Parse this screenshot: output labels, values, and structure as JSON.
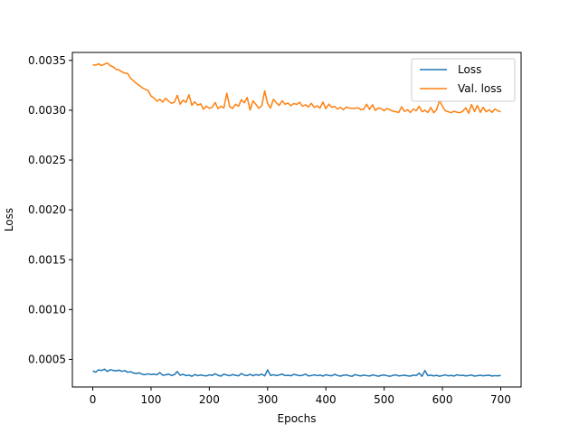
{
  "chart_data": {
    "type": "line",
    "xlabel": "Epochs",
    "ylabel": "Loss",
    "xlim": [
      -35,
      735
    ],
    "ylim": [
      0.000223,
      0.00358
    ],
    "xticks": [
      0,
      100,
      200,
      300,
      400,
      500,
      600,
      700
    ],
    "xtick_labels": [
      "0",
      "100",
      "200",
      "300",
      "400",
      "500",
      "600",
      "700"
    ],
    "yticks": [
      0.0005,
      0.001,
      0.0015,
      0.002,
      0.0025,
      0.003,
      0.0035
    ],
    "ytick_labels": [
      "0.0005",
      "0.0010",
      "0.0015",
      "0.0020",
      "0.0025",
      "0.0030",
      "0.0035"
    ],
    "grid": false,
    "legend_position": "top-right",
    "x": [
      0,
      5,
      10,
      15,
      20,
      25,
      30,
      35,
      40,
      45,
      50,
      55,
      60,
      65,
      70,
      75,
      80,
      85,
      90,
      95,
      100,
      105,
      110,
      115,
      120,
      125,
      130,
      135,
      140,
      145,
      150,
      155,
      160,
      165,
      170,
      175,
      180,
      185,
      190,
      195,
      200,
      205,
      210,
      215,
      220,
      225,
      230,
      235,
      240,
      245,
      250,
      255,
      260,
      265,
      270,
      275,
      280,
      285,
      290,
      295,
      300,
      305,
      310,
      315,
      320,
      325,
      330,
      335,
      340,
      345,
      350,
      355,
      360,
      365,
      370,
      375,
      380,
      385,
      390,
      395,
      400,
      405,
      410,
      415,
      420,
      425,
      430,
      435,
      440,
      445,
      450,
      455,
      460,
      465,
      470,
      475,
      480,
      485,
      490,
      495,
      500,
      505,
      510,
      515,
      520,
      525,
      530,
      535,
      540,
      545,
      550,
      555,
      560,
      565,
      570,
      575,
      580,
      585,
      590,
      595,
      600,
      605,
      610,
      615,
      620,
      625,
      630,
      635,
      640,
      645,
      650,
      655,
      660,
      665,
      670,
      675,
      680,
      685,
      690,
      695,
      700
    ],
    "series": [
      {
        "name": "Loss",
        "color": "#1f77b4",
        "values": [
          0.000385,
          0.000372,
          0.000395,
          0.000388,
          0.000402,
          0.000379,
          0.000396,
          0.00039,
          0.000384,
          0.000392,
          0.00038,
          0.000387,
          0.000371,
          0.000376,
          0.000362,
          0.000358,
          0.000365,
          0.00035,
          0.000347,
          0.000355,
          0.000348,
          0.000352,
          0.000345,
          0.000368,
          0.000341,
          0.000344,
          0.000352,
          0.000339,
          0.000346,
          0.000378,
          0.00034,
          0.000351,
          0.000337,
          0.000342,
          0.00033,
          0.000348,
          0.000336,
          0.000343,
          0.000338,
          0.000334,
          0.000345,
          0.000339,
          0.000356,
          0.00034,
          0.000332,
          0.000352,
          0.000342,
          0.000336,
          0.000348,
          0.00034,
          0.000335,
          0.000358,
          0.000342,
          0.000338,
          0.00035,
          0.000336,
          0.000347,
          0.000341,
          0.000352,
          0.000334,
          0.000395,
          0.000339,
          0.000346,
          0.000337,
          0.000344,
          0.000352,
          0.000338,
          0.000341,
          0.000335,
          0.000349,
          0.000343,
          0.000336,
          0.00034,
          0.000352,
          0.000334,
          0.000338,
          0.000345,
          0.000337,
          0.000342,
          0.000333,
          0.000346,
          0.000339,
          0.000335,
          0.00035,
          0.000338,
          0.000332,
          0.000341,
          0.000344,
          0.000336,
          0.00033,
          0.000347,
          0.000339,
          0.000334,
          0.000342,
          0.000337,
          0.000333,
          0.000344,
          0.000338,
          0.000331,
          0.00034,
          0.000343,
          0.000336,
          0.00033,
          0.000339,
          0.000345,
          0.000334,
          0.000338,
          0.000341,
          0.000335,
          0.000332,
          0.000343,
          0.000337,
          0.000362,
          0.00033,
          0.000388,
          0.000336,
          0.000342,
          0.000334,
          0.00034,
          0.000331,
          0.000338,
          0.000344,
          0.000335,
          0.000339,
          0.000333,
          0.000346,
          0.000337,
          0.000341,
          0.000334,
          0.000338,
          0.000343,
          0.000332,
          0.000336,
          0.00034,
          0.000335,
          0.000339,
          0.000341,
          0.000333,
          0.000337,
          0.000334,
          0.00034
        ]
      },
      {
        "name": "Val. loss",
        "color": "#ff7f0e",
        "values": [
          0.003458,
          0.003452,
          0.003466,
          0.003448,
          0.003462,
          0.003474,
          0.003447,
          0.003436,
          0.00341,
          0.003405,
          0.003385,
          0.003372,
          0.003368,
          0.00332,
          0.003295,
          0.003268,
          0.003248,
          0.003225,
          0.00321,
          0.003198,
          0.003142,
          0.003123,
          0.00309,
          0.00311,
          0.003082,
          0.00312,
          0.003092,
          0.00307,
          0.00308,
          0.00315,
          0.00306,
          0.003102,
          0.003078,
          0.003156,
          0.00305,
          0.003085,
          0.00305,
          0.003065,
          0.00301,
          0.003042,
          0.00302,
          0.00303,
          0.003078,
          0.003016,
          0.00304,
          0.003022,
          0.003172,
          0.003035,
          0.003018,
          0.00306,
          0.00304,
          0.003105,
          0.003075,
          0.003128,
          0.003002,
          0.003095,
          0.003058,
          0.00302,
          0.003045,
          0.003195,
          0.003068,
          0.003022,
          0.00311,
          0.003075,
          0.003048,
          0.003095,
          0.00306,
          0.003072,
          0.003045,
          0.003068,
          0.003058,
          0.00308,
          0.00304,
          0.003055,
          0.003032,
          0.00307,
          0.003028,
          0.003045,
          0.003022,
          0.003082,
          0.003015,
          0.003062,
          0.00303,
          0.003038,
          0.003012,
          0.003028,
          0.003005,
          0.003032,
          0.003022,
          0.00302,
          0.003018,
          0.003025,
          0.003005,
          0.003012,
          0.00306,
          0.003008,
          0.003055,
          0.002998,
          0.003022,
          0.003015,
          0.002995,
          0.003018,
          0.003005,
          0.00299,
          0.002985,
          0.002978,
          0.003035,
          0.002988,
          0.003005,
          0.002978,
          0.003012,
          0.002995,
          0.00304,
          0.002985,
          0.003,
          0.002978,
          0.003028,
          0.002975,
          0.003005,
          0.003098,
          0.00304,
          0.002995,
          0.002985,
          0.002975,
          0.00299,
          0.00298,
          0.002975,
          0.00299,
          0.003025,
          0.00297,
          0.003058,
          0.002988,
          0.003048,
          0.002978,
          0.00303,
          0.002985,
          0.003005,
          0.002978,
          0.003012,
          0.002995,
          0.002985
        ]
      }
    ]
  }
}
